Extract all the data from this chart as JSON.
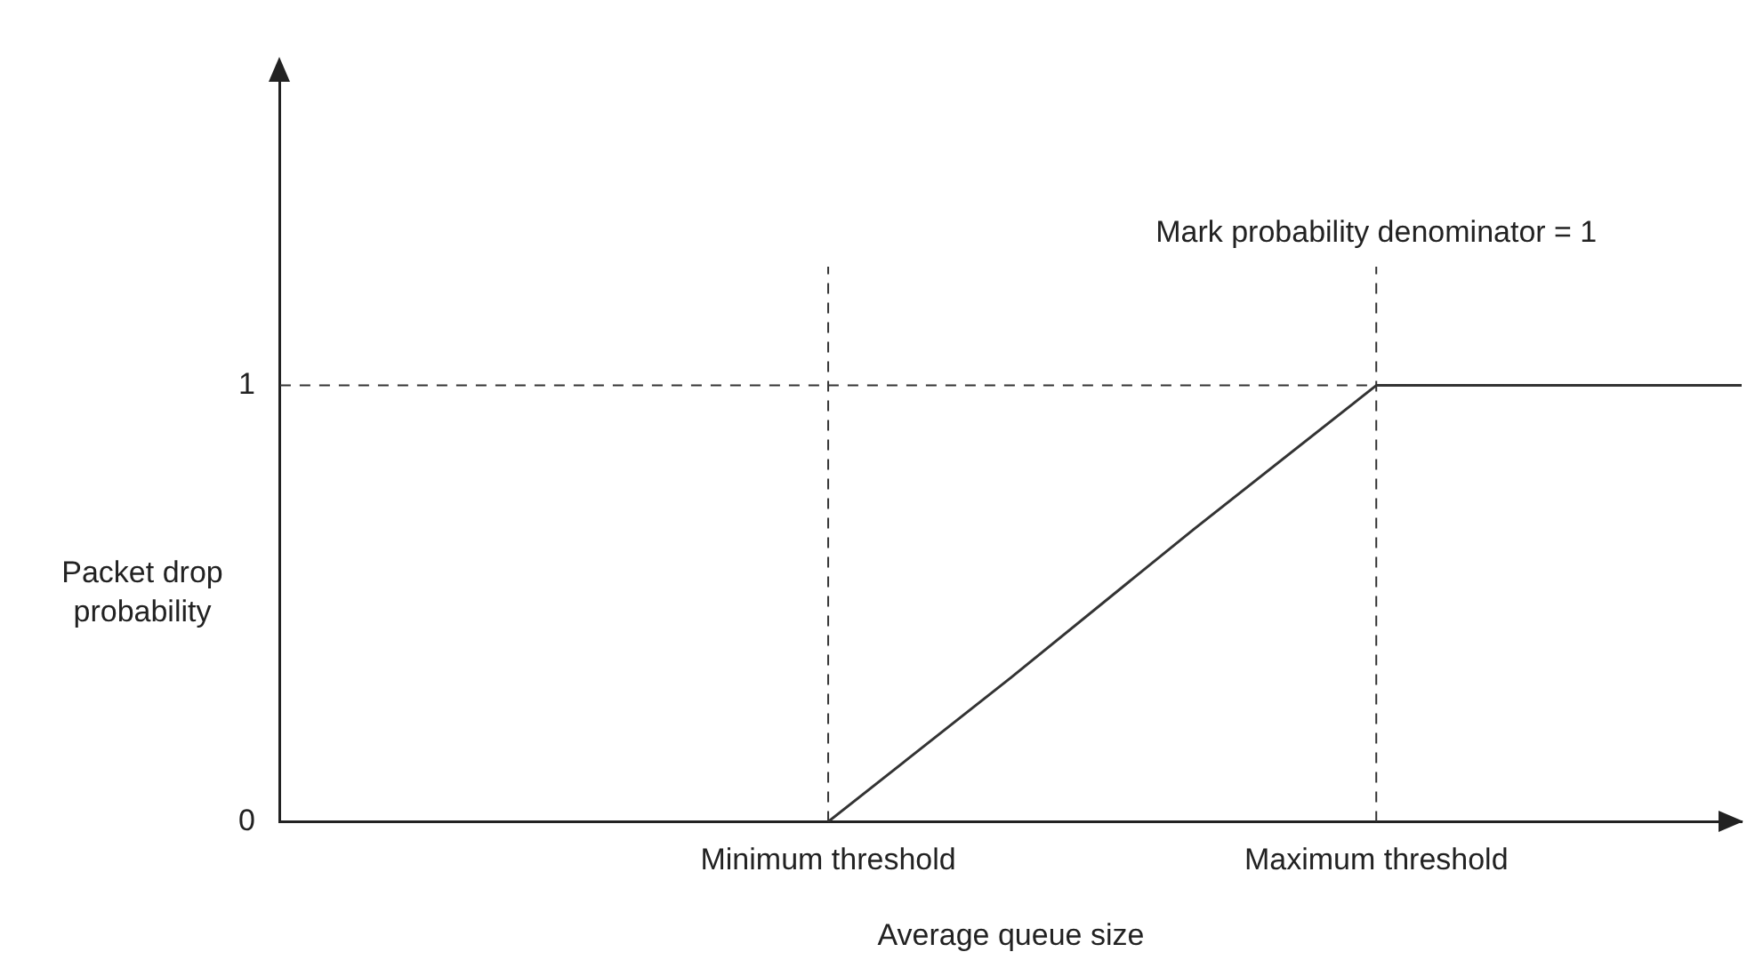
{
  "chart_data": {
    "type": "line",
    "xlabel": "Average queue size",
    "ylabel": "Packet drop probability",
    "categories": [
      null,
      null,
      null,
      "Minimum threshold",
      null,
      null,
      "Maximum threshold",
      null,
      null
    ],
    "series": [
      {
        "color": "#333333",
        "values": [
          null,
          null,
          null,
          0,
          0.33,
          0.67,
          1,
          1,
          1
        ]
      }
    ],
    "ylim": [
      0,
      1.7
    ],
    "yticks": [
      0,
      1
    ],
    "grid": false,
    "legend": false,
    "marker": "none",
    "line_style": "solid",
    "ref_lines": [
      {
        "axis": "y",
        "value": 1,
        "line_style": "dashed",
        "color": "#333333"
      },
      {
        "axis": "x",
        "value": "Minimum threshold",
        "line_style": "dashed",
        "color": "#333333"
      },
      {
        "axis": "x",
        "value": "Maximum threshold",
        "line_style": "dashed",
        "color": "#333333"
      }
    ],
    "annotations": [
      "Mark probability denominator = 1"
    ]
  }
}
